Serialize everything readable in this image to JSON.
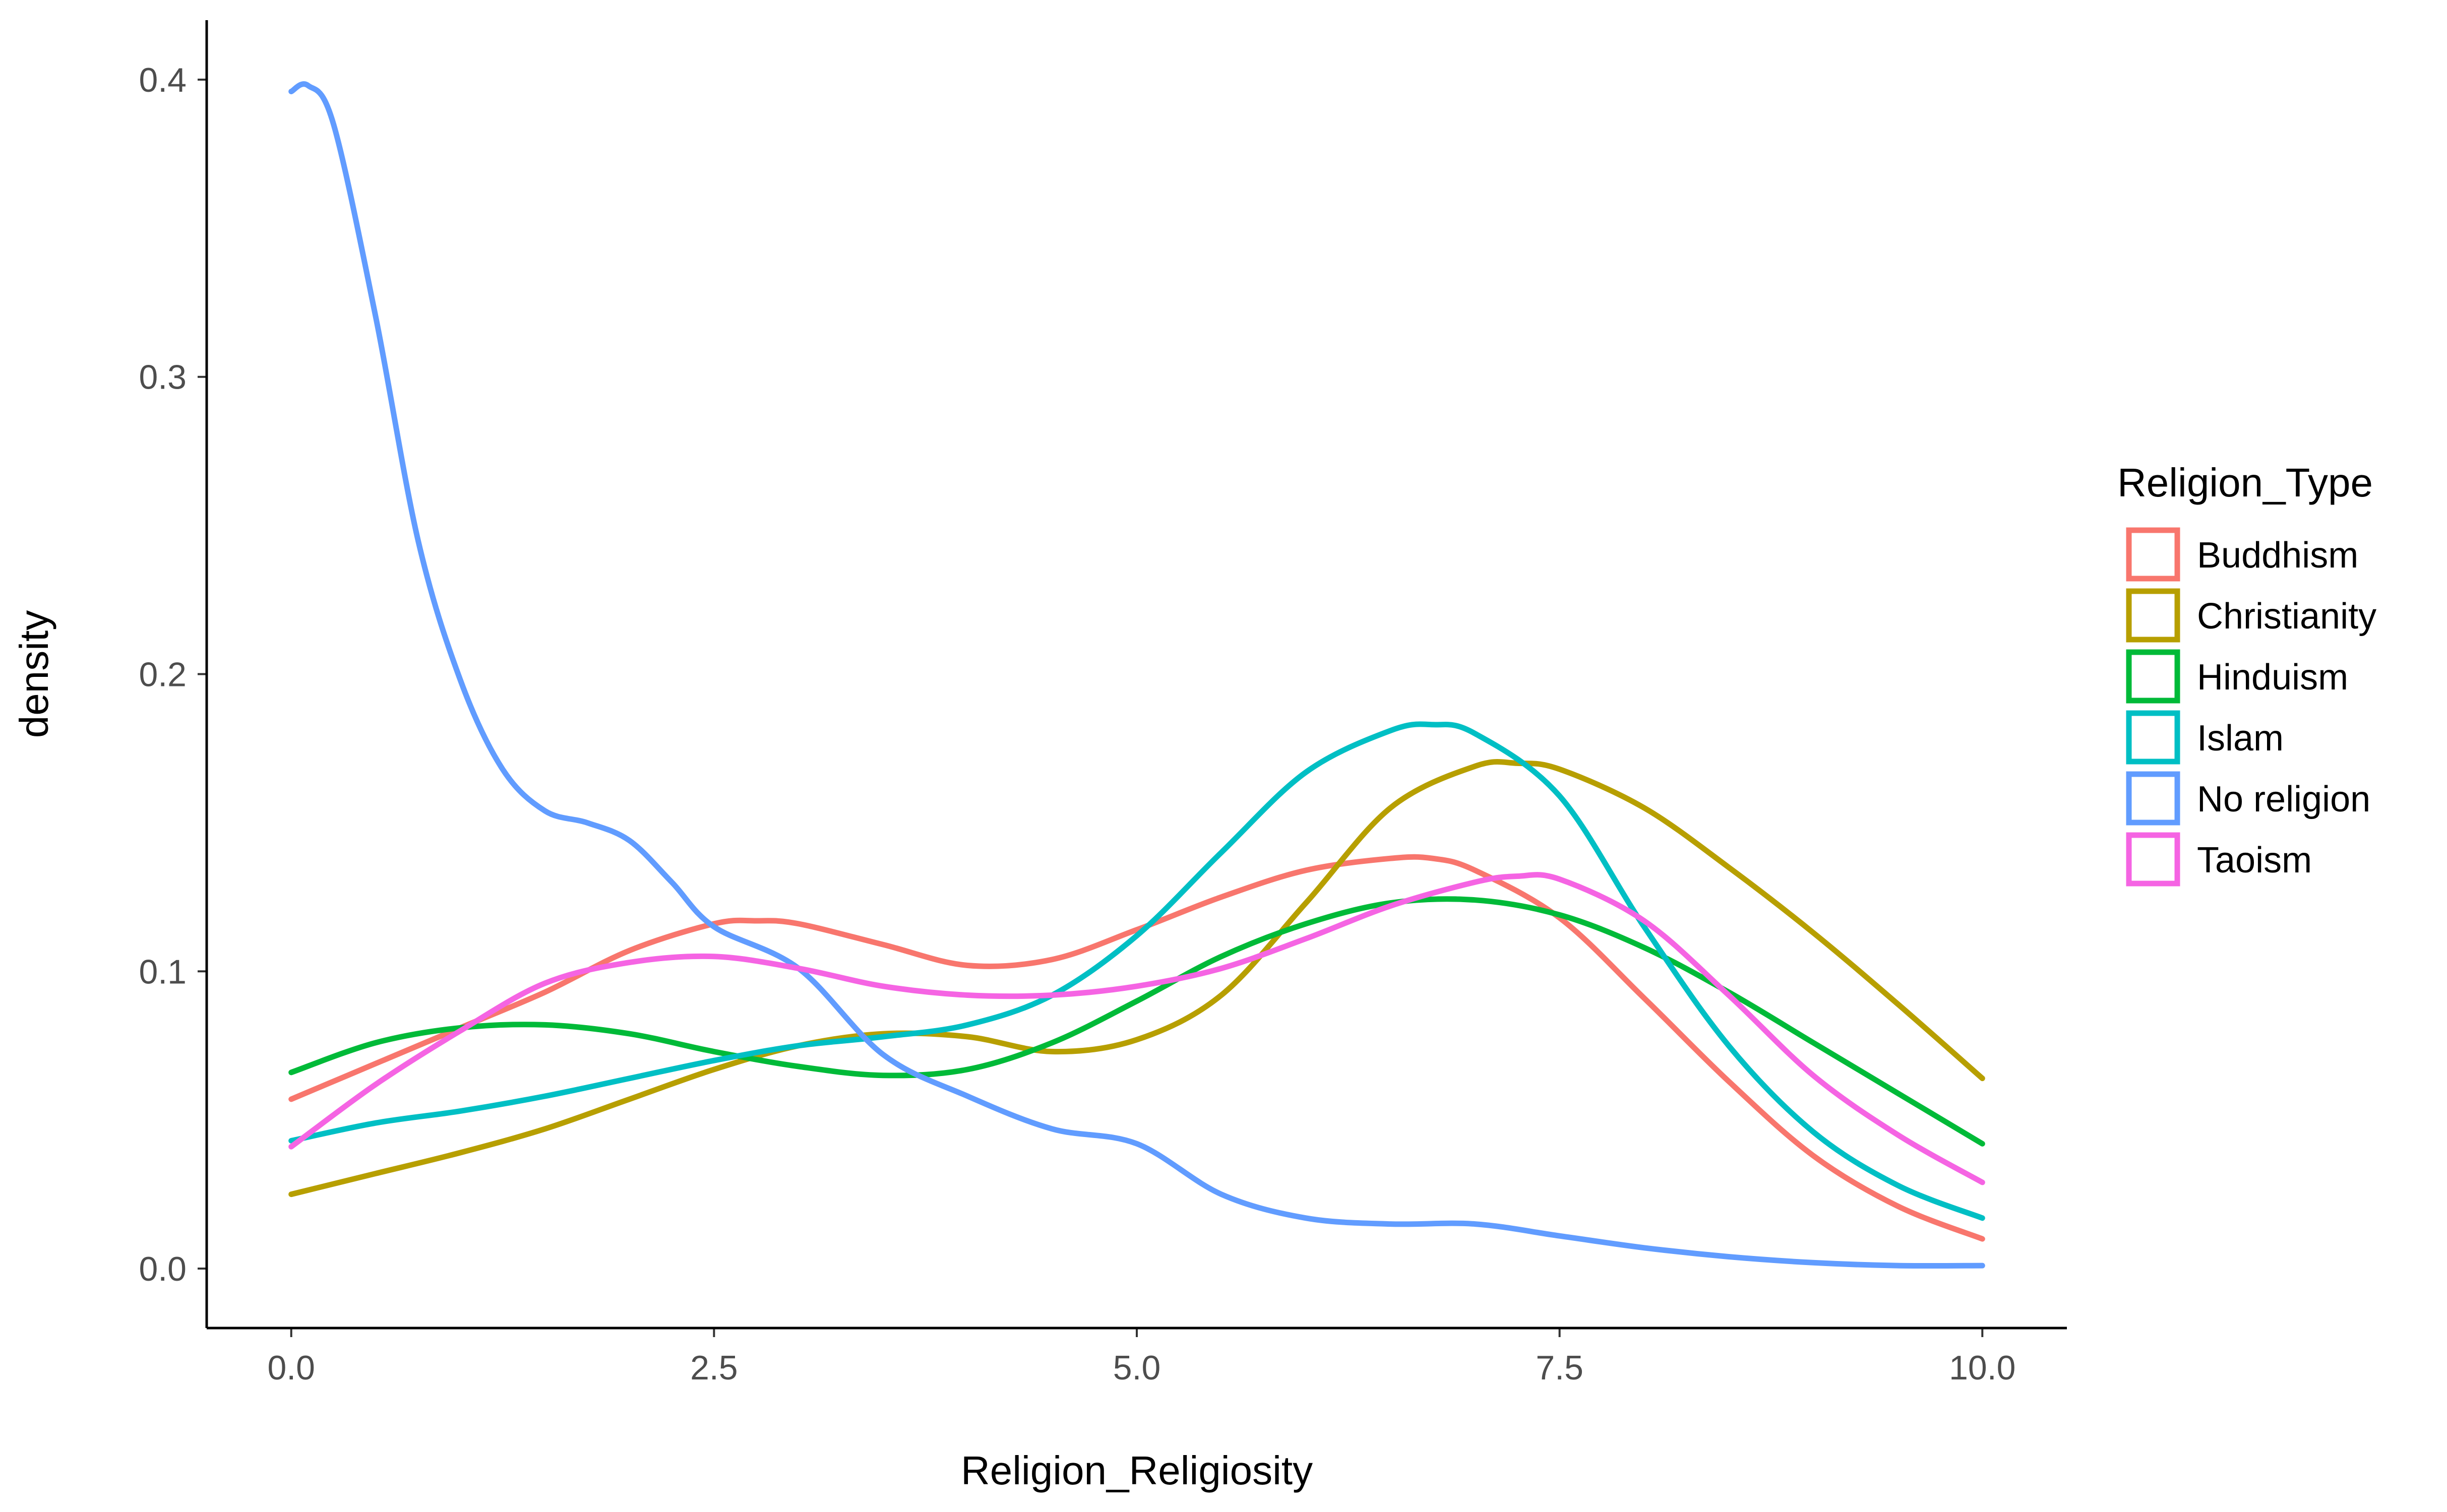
{
  "chart_data": {
    "type": "line",
    "subtype": "density",
    "xlabel": "Religion_Religiosity",
    "ylabel": "density",
    "xlim": [
      -0.5,
      10.5
    ],
    "ylim": [
      -0.02,
      0.42
    ],
    "x_ticks": [
      {
        "value": 0,
        "label": "0.0"
      },
      {
        "value": 2.5,
        "label": "2.5"
      },
      {
        "value": 5,
        "label": "5.0"
      },
      {
        "value": 7.5,
        "label": "7.5"
      },
      {
        "value": 10,
        "label": "10.0"
      }
    ],
    "y_ticks": [
      {
        "value": 0,
        "label": "0.0"
      },
      {
        "value": 0.1,
        "label": "0.1"
      },
      {
        "value": 0.2,
        "label": "0.2"
      },
      {
        "value": 0.3,
        "label": "0.3"
      },
      {
        "value": 0.4,
        "label": "0.4"
      }
    ],
    "grid": false,
    "legend": {
      "title": "Religion_Type",
      "position": "right"
    },
    "series": [
      {
        "name": "Buddhism",
        "color": "#F8766D",
        "x": [
          0,
          0.5,
          1,
          1.5,
          2,
          2.5,
          2.75,
          3,
          3.5,
          4,
          4.5,
          5,
          5.5,
          6,
          6.5,
          6.75,
          7,
          7.5,
          8,
          8.5,
          9,
          9.5,
          10
        ],
        "y": [
          0.057,
          0.069,
          0.081,
          0.093,
          0.107,
          0.116,
          0.117,
          0.116,
          0.109,
          0.102,
          0.104,
          0.114,
          0.125,
          0.134,
          0.138,
          0.138,
          0.134,
          0.118,
          0.091,
          0.063,
          0.038,
          0.021,
          0.01
        ]
      },
      {
        "name": "Christianity",
        "color": "#B79F00",
        "x": [
          0,
          0.5,
          1,
          1.5,
          2,
          2.5,
          3,
          3.5,
          4,
          4.5,
          5,
          5.5,
          6,
          6.5,
          7,
          7.25,
          7.5,
          8,
          8.5,
          9,
          9.5,
          10
        ],
        "y": [
          0.025,
          0.032,
          0.039,
          0.047,
          0.057,
          0.067,
          0.075,
          0.079,
          0.078,
          0.073,
          0.077,
          0.092,
          0.123,
          0.155,
          0.169,
          0.17,
          0.168,
          0.155,
          0.135,
          0.113,
          0.089,
          0.064
        ]
      },
      {
        "name": "Hinduism",
        "color": "#00BA38",
        "x": [
          0,
          0.5,
          1,
          1.5,
          2,
          2.5,
          3,
          3.5,
          4,
          4.5,
          5,
          5.5,
          6,
          6.5,
          7,
          7.5,
          8,
          8.5,
          9,
          9.5,
          10
        ],
        "y": [
          0.066,
          0.076,
          0.081,
          0.082,
          0.079,
          0.073,
          0.068,
          0.065,
          0.067,
          0.076,
          0.09,
          0.105,
          0.116,
          0.123,
          0.124,
          0.119,
          0.108,
          0.093,
          0.076,
          0.059,
          0.042
        ]
      },
      {
        "name": "Islam",
        "color": "#00BFC4",
        "x": [
          0,
          0.5,
          1,
          1.5,
          2,
          2.5,
          3,
          3.5,
          4,
          4.5,
          5,
          5.5,
          6,
          6.5,
          6.75,
          7,
          7.5,
          8,
          8.5,
          9,
          9.5,
          10
        ],
        "y": [
          0.043,
          0.049,
          0.053,
          0.058,
          0.064,
          0.07,
          0.075,
          0.078,
          0.082,
          0.092,
          0.112,
          0.14,
          0.167,
          0.181,
          0.183,
          0.18,
          0.159,
          0.115,
          0.075,
          0.046,
          0.028,
          0.017
        ]
      },
      {
        "name": "No religion",
        "color": "#619CFF",
        "x": [
          0,
          0.1,
          0.25,
          0.5,
          0.75,
          1,
          1.25,
          1.5,
          1.75,
          2,
          2.25,
          2.5,
          3,
          3.5,
          4,
          4.5,
          5,
          5.5,
          6,
          6.5,
          7,
          7.5,
          8,
          8.5,
          9,
          9.5,
          10
        ],
        "y": [
          0.396,
          0.398,
          0.385,
          0.32,
          0.245,
          0.198,
          0.168,
          0.154,
          0.15,
          0.144,
          0.13,
          0.115,
          0.101,
          0.072,
          0.058,
          0.047,
          0.042,
          0.025,
          0.017,
          0.015,
          0.015,
          0.011,
          0.007,
          0.004,
          0.002,
          0.001,
          0.001
        ]
      },
      {
        "name": "Taoism",
        "color": "#F564E3",
        "x": [
          0,
          0.5,
          1,
          1.5,
          2,
          2.5,
          3,
          3.5,
          4,
          4.5,
          5,
          5.5,
          6,
          6.5,
          7,
          7.25,
          7.5,
          8,
          8.5,
          9,
          9.5,
          10
        ],
        "y": [
          0.041,
          0.062,
          0.08,
          0.096,
          0.103,
          0.105,
          0.101,
          0.095,
          0.092,
          0.092,
          0.095,
          0.101,
          0.111,
          0.122,
          0.13,
          0.132,
          0.131,
          0.117,
          0.092,
          0.065,
          0.045,
          0.029
        ]
      }
    ]
  }
}
